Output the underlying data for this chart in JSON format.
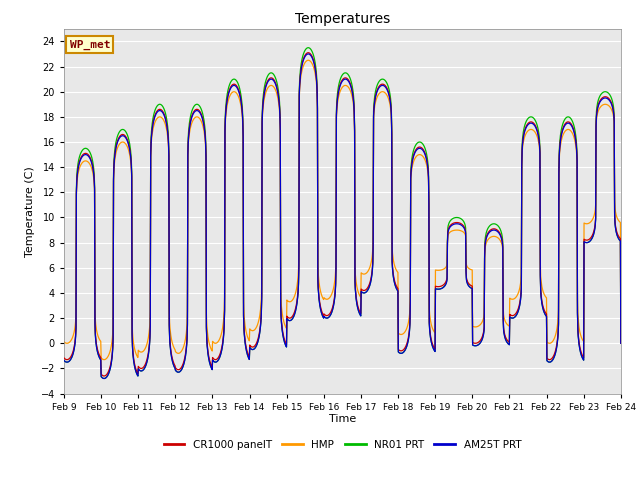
{
  "title": "Temperatures",
  "ylabel": "Temperature (C)",
  "xlabel": "Time",
  "ylim": [
    -4,
    25
  ],
  "yticks": [
    -4,
    -2,
    0,
    2,
    4,
    6,
    8,
    10,
    12,
    14,
    16,
    18,
    20,
    22,
    24
  ],
  "xtick_labels": [
    "Feb 9",
    "Feb 10",
    "Feb 11",
    "Feb 12",
    "Feb 13",
    "Feb 14",
    "Feb 15",
    "Feb 16",
    "Feb 17",
    "Feb 18",
    "Feb 19",
    "Feb 20",
    "Feb 21",
    "Feb 22",
    "Feb 23",
    "Feb 24"
  ],
  "fig_bg_color": "#ffffff",
  "plot_bg_color": "#e8e8e8",
  "grid_color": "#ffffff",
  "line_colors": {
    "CR1000 panelT": "#cc0000",
    "HMP": "#ff9900",
    "NR01 PRT": "#00bb00",
    "AM25T PRT": "#0000cc"
  },
  "annotation_text": "WP_met",
  "annotation_color": "#800000",
  "annotation_bg": "#ffffcc",
  "annotation_border": "#cc8800",
  "legend_series": [
    "CR1000 panelT",
    "HMP",
    "NR01 PRT",
    "AM25T PRT"
  ],
  "n_days": 15,
  "samples_per_day": 96,
  "base_peaks": [
    15.0,
    16.5,
    18.5,
    18.5,
    20.5,
    21.0,
    23.0,
    21.0,
    20.5,
    15.5,
    9.5,
    9.0,
    17.5,
    17.5,
    19.5
  ],
  "base_troughs": [
    -1.5,
    -2.8,
    -2.2,
    -2.3,
    -1.5,
    -0.5,
    1.8,
    2.0,
    4.0,
    -0.8,
    4.3,
    -0.2,
    2.0,
    -1.5,
    8.0
  ],
  "hmp_peak_offset": [
    -0.5,
    -0.5,
    -0.5,
    -0.5,
    -0.5,
    -0.5,
    -0.5,
    -0.5,
    -0.5,
    -0.5,
    -0.5,
    -0.5,
    -0.5,
    -0.5,
    -0.5
  ],
  "hmp_trough_offset": [
    1.5,
    1.5,
    1.5,
    1.5,
    1.5,
    1.5,
    1.5,
    1.5,
    1.5,
    1.5,
    1.5,
    1.5,
    1.5,
    1.5,
    1.5
  ],
  "nr01_peak_offset": [
    0.5,
    0.5,
    0.5,
    0.5,
    0.5,
    0.5,
    0.5,
    0.5,
    0.5,
    0.5,
    0.5,
    0.5,
    0.5,
    0.5,
    0.5
  ],
  "nr01_trough_offset": [
    0.0,
    0.0,
    0.0,
    0.0,
    0.0,
    0.0,
    0.0,
    0.0,
    0.0,
    0.0,
    0.0,
    0.0,
    0.0,
    0.0,
    0.0
  ],
  "peak_time": 0.58,
  "trough_time": 0.25,
  "sharpness": 8.0
}
